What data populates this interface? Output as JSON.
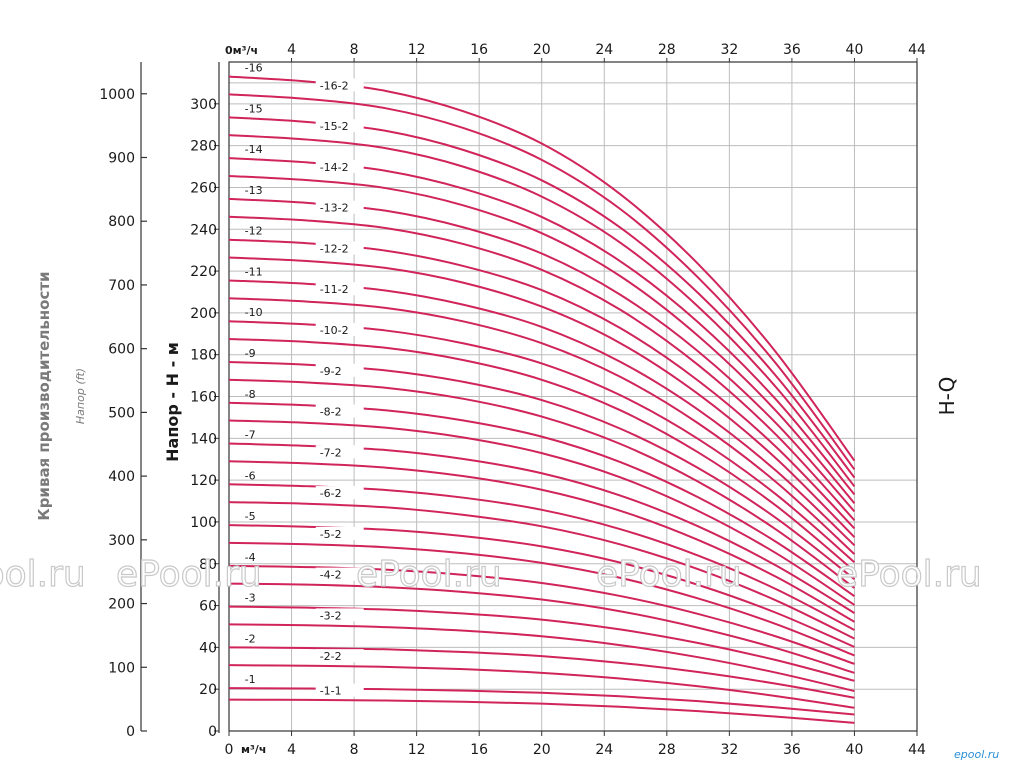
{
  "chart_data": {
    "type": "line",
    "x_unit_label_top": "0м³/ч",
    "x_unit_label_bottom": "м³/ч",
    "x_ticks": [
      0,
      4,
      8,
      12,
      16,
      20,
      24,
      28,
      32,
      36,
      40,
      44
    ],
    "x_tick_labels_bottom": [
      "0",
      "4",
      "8",
      "12",
      "16",
      "20",
      "24",
      "28",
      "32",
      "36",
      "40",
      "44"
    ],
    "x_tick_labels_top": [
      "4",
      "8",
      "12",
      "16",
      "20",
      "24",
      "28",
      "32",
      "36",
      "40",
      "44"
    ],
    "xlim": [
      0,
      44
    ],
    "ylim_m": [
      0,
      320
    ],
    "y_ticks_m": [
      0,
      20,
      40,
      60,
      80,
      100,
      120,
      140,
      160,
      180,
      200,
      220,
      240,
      260,
      280,
      300
    ],
    "y_ticks_ft": [
      0,
      100,
      200,
      300,
      400,
      500,
      600,
      700,
      800,
      900,
      1000
    ],
    "ylabel_m": "Напор - Н - м",
    "ylabel_ft": "Напор (ft)",
    "title_left": "Кривая производительности",
    "title_right": "H-Q",
    "grid": true,
    "line_color": "#d0245a",
    "x_range_plotted": [
      0,
      40
    ],
    "series": [
      {
        "name": "-1",
        "values": [
          20.5,
          20.3,
          20.0,
          19.3,
          18.3,
          16.6,
          14.3,
          11.3,
          7.9
        ]
      },
      {
        "name": "-1-1",
        "values": [
          15.0,
          14.9,
          14.6,
          14.0,
          13.1,
          11.6,
          9.5,
          6.9,
          3.9
        ]
      },
      {
        "name": "-2",
        "values": [
          40.0,
          39.7,
          39.1,
          37.8,
          35.8,
          32.6,
          28.2,
          22.6,
          15.9
        ]
      },
      {
        "name": "-2-2",
        "values": [
          31.5,
          31.2,
          30.7,
          29.6,
          27.8,
          25.1,
          21.4,
          16.7,
          11.1
        ]
      },
      {
        "name": "-3",
        "values": [
          59.5,
          59.0,
          58.1,
          56.2,
          53.3,
          48.6,
          42.1,
          33.9,
          24.0
        ]
      },
      {
        "name": "-3-2",
        "values": [
          51.0,
          50.6,
          49.7,
          48.0,
          45.3,
          41.1,
          35.3,
          27.9,
          19.1
        ]
      },
      {
        "name": "-4",
        "values": [
          79.0,
          78.4,
          77.2,
          74.7,
          70.8,
          64.6,
          56.0,
          45.2,
          32.1
        ]
      },
      {
        "name": "-4-2",
        "values": [
          70.5,
          70.0,
          68.8,
          66.5,
          62.9,
          57.3,
          49.4,
          39.6,
          27.8
        ]
      },
      {
        "name": "-5",
        "values": [
          98.5,
          97.7,
          96.3,
          93.2,
          88.3,
          80.6,
          69.9,
          56.5,
          40.2
        ]
      },
      {
        "name": "-5-2",
        "values": [
          90.0,
          89.3,
          87.9,
          85.0,
          80.4,
          73.3,
          63.4,
          51.1,
          36.1
        ]
      },
      {
        "name": "-6",
        "values": [
          118.0,
          117.1,
          115.3,
          111.6,
          105.8,
          96.6,
          83.9,
          67.8,
          48.3
        ]
      },
      {
        "name": "-6-2",
        "values": [
          109.5,
          108.7,
          107.0,
          103.4,
          97.9,
          89.3,
          77.4,
          62.4,
          44.2
        ]
      },
      {
        "name": "-7",
        "values": [
          137.5,
          136.4,
          134.4,
          130.1,
          123.3,
          112.7,
          97.9,
          79.1,
          56.4
        ]
      },
      {
        "name": "-7-2",
        "values": [
          129.0,
          128.0,
          126.0,
          121.9,
          115.4,
          105.4,
          91.4,
          73.7,
          52.2
        ]
      },
      {
        "name": "-8",
        "values": [
          157.0,
          155.8,
          153.4,
          148.5,
          140.8,
          128.7,
          111.8,
          90.4,
          64.5
        ]
      },
      {
        "name": "-8-2",
        "values": [
          148.5,
          147.4,
          145.1,
          140.4,
          132.9,
          121.4,
          105.3,
          85.0,
          60.3
        ]
      },
      {
        "name": "-9",
        "values": [
          176.5,
          175.2,
          172.5,
          167.0,
          158.3,
          144.7,
          125.8,
          101.8,
          72.6
        ]
      },
      {
        "name": "-9-2",
        "values": [
          168.0,
          166.7,
          164.2,
          158.9,
          150.4,
          137.4,
          119.3,
          96.3,
          68.4
        ]
      },
      {
        "name": "-10",
        "values": [
          196.0,
          194.5,
          191.6,
          185.4,
          175.8,
          160.7,
          139.7,
          113.1,
          80.7
        ]
      },
      {
        "name": "-10-2",
        "values": [
          187.5,
          186.1,
          183.3,
          177.4,
          168.0,
          153.5,
          133.3,
          107.7,
          76.5
        ]
      },
      {
        "name": "-11",
        "values": [
          215.5,
          213.9,
          210.7,
          203.9,
          193.3,
          176.7,
          153.7,
          124.4,
          88.8
        ]
      },
      {
        "name": "-11-2",
        "values": [
          207.0,
          205.4,
          202.4,
          195.9,
          185.5,
          169.5,
          147.2,
          119.0,
          84.6
        ]
      },
      {
        "name": "-12",
        "values": [
          235.0,
          233.3,
          229.8,
          222.4,
          210.9,
          192.8,
          167.6,
          135.8,
          96.9
        ]
      },
      {
        "name": "-12-2",
        "values": [
          226.5,
          224.8,
          221.5,
          214.4,
          203.0,
          185.6,
          161.2,
          130.3,
          92.7
        ]
      },
      {
        "name": "-13",
        "values": [
          254.5,
          252.6,
          248.9,
          240.9,
          228.4,
          208.8,
          181.6,
          147.1,
          105.0
        ]
      },
      {
        "name": "-13-2",
        "values": [
          246.0,
          244.2,
          240.6,
          232.9,
          220.6,
          201.6,
          175.1,
          141.6,
          100.8
        ]
      },
      {
        "name": "-14",
        "values": [
          274.0,
          272.0,
          268.0,
          259.4,
          245.9,
          224.8,
          195.5,
          158.4,
          113.1
        ]
      },
      {
        "name": "-14-2",
        "values": [
          265.5,
          263.5,
          259.7,
          251.4,
          238.1,
          217.7,
          189.0,
          153.0,
          108.9
        ]
      },
      {
        "name": "-15",
        "values": [
          293.5,
          291.3,
          287.1,
          277.9,
          263.4,
          240.9,
          209.5,
          169.7,
          121.2
        ]
      },
      {
        "name": "-15-2",
        "values": [
          285.0,
          282.9,
          278.8,
          269.9,
          255.6,
          233.7,
          203.0,
          164.3,
          117.0
        ]
      },
      {
        "name": "-16",
        "values": [
          313.0,
          310.7,
          306.2,
          296.4,
          281.0,
          256.9,
          223.4,
          181.0,
          129.3
        ]
      },
      {
        "name": "-16-2",
        "values": [
          304.5,
          302.3,
          297.9,
          288.4,
          273.2,
          249.8,
          216.9,
          175.6,
          125.1
        ]
      }
    ],
    "x": [
      0,
      5,
      10,
      15,
      20,
      25,
      30,
      35,
      40
    ]
  },
  "watermark": "ePool.ru",
  "brand": "epool.ru"
}
